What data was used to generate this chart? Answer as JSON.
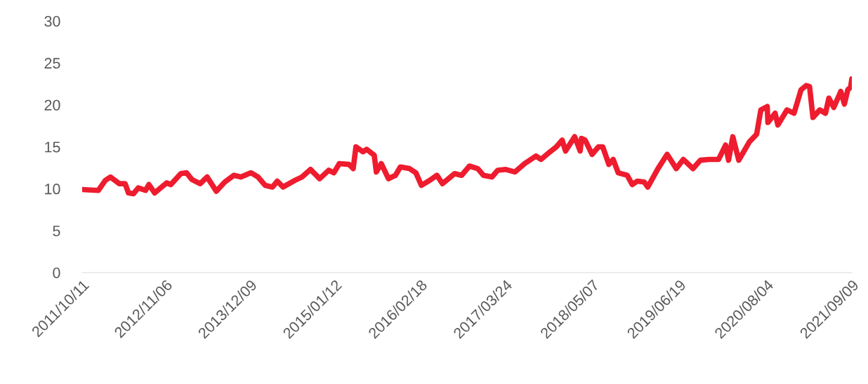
{
  "chart_data": {
    "type": "line",
    "grid": false,
    "legend": false,
    "marker": "none",
    "line_style": "solid",
    "xlim": [
      "2011-10-11",
      "2021-09-09"
    ],
    "xticks": [
      {
        "value": "2011-10-11",
        "label": "2011/10/11"
      },
      {
        "value": "2012-11-06",
        "label": "2012/11/06"
      },
      {
        "value": "2013-12-09",
        "label": "2013/12/09"
      },
      {
        "value": "2015-01-12",
        "label": "2015/01/12"
      },
      {
        "value": "2016-02-18",
        "label": "2016/02/18"
      },
      {
        "value": "2017-03-24",
        "label": "2017/03/24"
      },
      {
        "value": "2018-05-07",
        "label": "2018/05/07"
      },
      {
        "value": "2019-06-19",
        "label": "2019/06/19"
      },
      {
        "value": "2020-08-04",
        "label": "2020/08/04"
      },
      {
        "value": "2021-09-09",
        "label": "2021/09/09"
      }
    ],
    "ylim": [
      0,
      30
    ],
    "yticks": [
      0,
      5,
      10,
      15,
      20,
      25,
      30
    ],
    "series": [
      {
        "color": "#ee1c2e",
        "x": [
          "2011-10-11",
          "2011-12-26",
          "2012-01-28",
          "2012-02-21",
          "2012-04-03",
          "2012-04-30",
          "2012-05-16",
          "2012-06-08",
          "2012-07-01",
          "2012-08-04",
          "2012-08-20",
          "2012-09-16",
          "2012-10-19",
          "2012-11-12",
          "2012-12-01",
          "2013-01-17",
          "2013-02-13",
          "2013-03-10",
          "2013-04-18",
          "2013-05-21",
          "2013-07-03",
          "2013-08-12",
          "2013-09-24",
          "2013-10-27",
          "2013-12-13",
          "2014-01-15",
          "2014-02-18",
          "2014-03-24",
          "2014-04-16",
          "2014-05-13",
          "2014-07-08",
          "2014-08-10",
          "2014-09-19",
          "2014-11-01",
          "2014-12-14",
          "2015-01-07",
          "2015-02-02",
          "2015-03-19",
          "2015-04-08",
          "2015-04-21",
          "2015-05-24",
          "2015-06-10",
          "2015-07-16",
          "2015-07-26",
          "2015-08-18",
          "2015-09-21",
          "2015-10-24",
          "2015-11-16",
          "2015-12-29",
          "2016-01-28",
          "2016-02-23",
          "2016-03-27",
          "2016-05-06",
          "2016-06-01",
          "2016-07-28",
          "2016-08-30",
          "2016-10-06",
          "2016-11-14",
          "2016-12-11",
          "2017-01-20",
          "2017-02-16",
          "2017-03-26",
          "2017-05-08",
          "2017-06-23",
          "2017-08-15",
          "2017-09-08",
          "2017-10-20",
          "2017-11-19",
          "2017-12-16",
          "2018-01-01",
          "2018-02-13",
          "2018-03-11",
          "2018-03-17",
          "2018-04-03",
          "2018-05-06",
          "2018-06-05",
          "2018-06-25",
          "2018-07-24",
          "2018-08-13",
          "2018-09-06",
          "2018-10-18",
          "2018-11-11",
          "2018-12-04",
          "2019-01-06",
          "2019-01-23",
          "2019-03-12",
          "2019-04-24",
          "2019-06-06",
          "2019-07-09",
          "2019-08-24",
          "2019-09-27",
          "2019-11-09",
          "2019-12-22",
          "2020-01-24",
          "2020-02-07",
          "2020-02-27",
          "2020-03-26",
          "2020-05-15",
          "2020-06-18",
          "2020-07-08",
          "2020-08-07",
          "2020-08-10",
          "2020-09-13",
          "2020-09-26",
          "2020-11-08",
          "2020-12-11",
          "2021-01-13",
          "2021-02-06",
          "2021-02-22",
          "2021-03-10",
          "2021-04-11",
          "2021-05-08",
          "2021-05-24",
          "2021-06-16",
          "2021-07-19",
          "2021-08-05",
          "2021-08-21",
          "2021-09-03",
          "2021-09-09"
        ],
        "values": [
          9.9,
          9.8,
          11.0,
          11.4,
          10.6,
          10.6,
          9.5,
          9.4,
          10.1,
          9.8,
          10.5,
          9.5,
          10.2,
          10.7,
          10.5,
          11.8,
          11.9,
          11.1,
          10.6,
          11.4,
          9.7,
          10.8,
          11.6,
          11.4,
          11.9,
          11.4,
          10.4,
          10.2,
          10.9,
          10.2,
          11.0,
          11.4,
          12.3,
          11.2,
          12.2,
          11.9,
          13.0,
          12.9,
          12.4,
          15.0,
          14.4,
          14.7,
          14.0,
          12.0,
          13.0,
          11.2,
          11.6,
          12.6,
          12.4,
          11.9,
          10.4,
          10.9,
          11.6,
          10.6,
          11.8,
          11.6,
          12.7,
          12.4,
          11.6,
          11.4,
          12.2,
          12.3,
          12.0,
          13.0,
          13.9,
          13.5,
          14.4,
          15.0,
          15.8,
          14.5,
          16.2,
          14.5,
          16.0,
          15.8,
          14.1,
          15.0,
          15.0,
          12.9,
          13.5,
          11.9,
          11.6,
          10.5,
          10.9,
          10.8,
          10.2,
          12.4,
          14.1,
          12.4,
          13.5,
          12.4,
          13.4,
          13.5,
          13.5,
          15.2,
          13.4,
          16.2,
          13.4,
          15.6,
          16.5,
          19.4,
          19.8,
          17.9,
          19.0,
          17.6,
          19.4,
          19.0,
          21.8,
          22.3,
          22.2,
          18.5,
          19.4,
          19.0,
          20.8,
          19.7,
          21.6,
          20.1,
          21.8,
          22.1,
          23.1
        ]
      }
    ]
  }
}
